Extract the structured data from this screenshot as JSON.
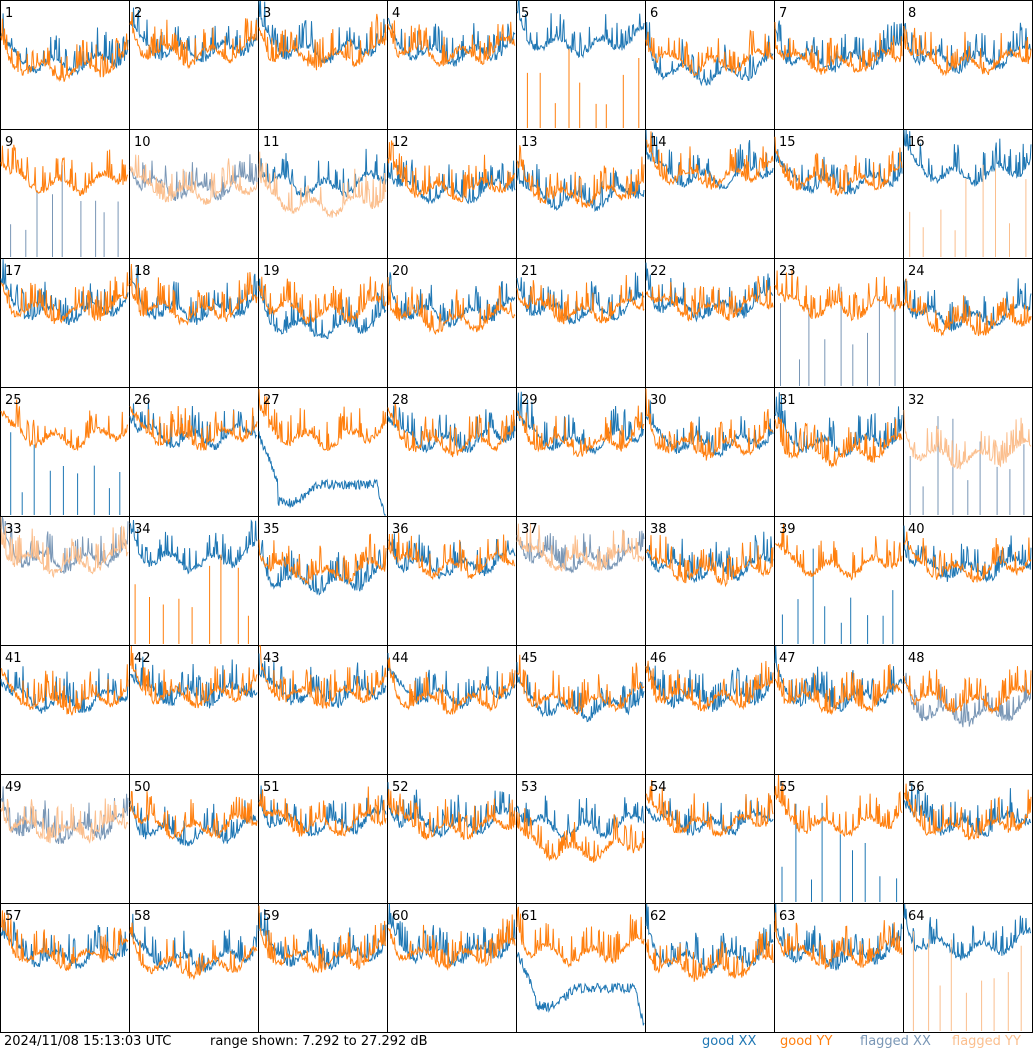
{
  "chart_data": {
    "type": "line",
    "layout": "8x8 small-multiples grid, one panel per tile",
    "y_range_db": [
      7.292,
      27.292
    ],
    "grid": false,
    "timestamp": "2024/11/08 15:13:03 UTC",
    "range_text": "range shown: 7.292 to 27.292 dB",
    "legend": [
      {
        "label": "good XX",
        "color": "#1f77b4"
      },
      {
        "label": "good YY",
        "color": "#ff7f0e"
      },
      {
        "label": "flagged XX",
        "color": "#7a97b6"
      },
      {
        "label": "flagged YY",
        "color": "#fbbf8e"
      }
    ],
    "tiles": [
      {
        "id": "1",
        "xx": "good",
        "yy": "good",
        "xx_pattern": "normal",
        "yy_pattern": "normal",
        "xx_level": 18.5,
        "yy_level": 17.5
      },
      {
        "id": "2",
        "xx": "good",
        "yy": "good",
        "xx_pattern": "normal",
        "yy_pattern": "normal",
        "xx_level": 20.5,
        "yy_level": 20
      },
      {
        "id": "3",
        "xx": "good",
        "yy": "good",
        "xx_pattern": "normal",
        "yy_pattern": "normal",
        "xx_level": 20.5,
        "yy_level": 19.5
      },
      {
        "id": "4",
        "xx": "good",
        "yy": "good",
        "xx_pattern": "normal",
        "yy_pattern": "normal",
        "xx_level": 20,
        "yy_level": 20
      },
      {
        "id": "5",
        "xx": "good",
        "yy": "good",
        "xx_pattern": "normal",
        "yy_pattern": "spikes",
        "xx_level": 21.5,
        "yy_level": 7.3
      },
      {
        "id": "6",
        "xx": "good",
        "yy": "good",
        "xx_pattern": "normal",
        "yy_pattern": "normal",
        "xx_level": 17,
        "yy_level": 18.5
      },
      {
        "id": "7",
        "xx": "good",
        "yy": "good",
        "xx_pattern": "normal",
        "yy_pattern": "normal",
        "xx_level": 19,
        "yy_level": 18.5
      },
      {
        "id": "8",
        "xx": "good",
        "yy": "good",
        "xx_pattern": "normal",
        "yy_pattern": "normal",
        "xx_level": 19,
        "yy_level": 18.5
      },
      {
        "id": "9",
        "xx": "flagged",
        "yy": "good",
        "xx_pattern": "spikes",
        "yy_pattern": "normal",
        "xx_level": 7.3,
        "yy_level": 20
      },
      {
        "id": "10",
        "xx": "flagged",
        "yy": "flagged",
        "xx_pattern": "normal",
        "yy_pattern": "normal",
        "xx_level": 19,
        "yy_level": 18.5
      },
      {
        "id": "11",
        "xx": "good",
        "yy": "flagged",
        "xx_pattern": "normal",
        "yy_pattern": "normal",
        "xx_level": 19.5,
        "yy_level": 16.5
      },
      {
        "id": "12",
        "xx": "good",
        "yy": "good",
        "xx_pattern": "normal",
        "yy_pattern": "normal",
        "xx_level": 18.5,
        "yy_level": 19
      },
      {
        "id": "13",
        "xx": "good",
        "yy": "good",
        "xx_pattern": "normal",
        "yy_pattern": "normal",
        "xx_level": 17.5,
        "yy_level": 18
      },
      {
        "id": "14",
        "xx": "good",
        "yy": "good",
        "xx_pattern": "normal",
        "yy_pattern": "normal",
        "xx_level": 21,
        "yy_level": 21
      },
      {
        "id": "15",
        "xx": "good",
        "yy": "good",
        "xx_pattern": "normal",
        "yy_pattern": "normal",
        "xx_level": 20,
        "yy_level": 20
      },
      {
        "id": "16",
        "xx": "good",
        "yy": "flagged",
        "xx_pattern": "normal",
        "yy_pattern": "spikes",
        "xx_level": 21.5,
        "yy_level": 7.3
      },
      {
        "id": "17",
        "xx": "good",
        "yy": "good",
        "xx_pattern": "normal",
        "yy_pattern": "normal",
        "xx_level": 20,
        "yy_level": 20
      },
      {
        "id": "18",
        "xx": "good",
        "yy": "good",
        "xx_pattern": "normal",
        "yy_pattern": "normal",
        "xx_level": 20,
        "yy_level": 20
      },
      {
        "id": "19",
        "xx": "good",
        "yy": "good",
        "xx_pattern": "normal",
        "yy_pattern": "normal",
        "xx_level": 17.5,
        "yy_level": 20
      },
      {
        "id": "20",
        "xx": "good",
        "yy": "good",
        "xx_pattern": "normal",
        "yy_pattern": "normal",
        "xx_level": 19.5,
        "yy_level": 18.5
      },
      {
        "id": "21",
        "xx": "good",
        "yy": "good",
        "xx_pattern": "normal",
        "yy_pattern": "normal",
        "xx_level": 20,
        "yy_level": 20
      },
      {
        "id": "22",
        "xx": "good",
        "yy": "good",
        "xx_pattern": "normal",
        "yy_pattern": "normal",
        "xx_level": 20.5,
        "yy_level": 20.5
      },
      {
        "id": "23",
        "xx": "flagged",
        "yy": "good",
        "xx_pattern": "spikes",
        "yy_pattern": "normal",
        "xx_level": 7.3,
        "yy_level": 20.5
      },
      {
        "id": "24",
        "xx": "good",
        "yy": "good",
        "xx_pattern": "normal",
        "yy_pattern": "normal",
        "xx_level": 19,
        "yy_level": 18
      },
      {
        "id": "25",
        "xx": "good",
        "yy": "good",
        "xx_pattern": "spikes",
        "yy_pattern": "normal",
        "xx_level": 7.3,
        "yy_level": 20.5
      },
      {
        "id": "26",
        "xx": "good",
        "yy": "good",
        "xx_pattern": "normal",
        "yy_pattern": "normal",
        "xx_level": 20.5,
        "yy_level": 20.5
      },
      {
        "id": "27",
        "xx": "good",
        "yy": "good",
        "xx_pattern": "dip",
        "yy_pattern": "normal",
        "xx_level": 12,
        "yy_level": 20.5
      },
      {
        "id": "28",
        "xx": "good",
        "yy": "good",
        "xx_pattern": "normal",
        "yy_pattern": "normal",
        "xx_level": 20,
        "yy_level": 19.5
      },
      {
        "id": "29",
        "xx": "good",
        "yy": "good",
        "xx_pattern": "normal",
        "yy_pattern": "normal",
        "xx_level": 20,
        "yy_level": 19.5
      },
      {
        "id": "30",
        "xx": "good",
        "yy": "good",
        "xx_pattern": "normal",
        "yy_pattern": "normal",
        "xx_level": 19.5,
        "yy_level": 19
      },
      {
        "id": "31",
        "xx": "good",
        "yy": "good",
        "xx_pattern": "normal",
        "yy_pattern": "normal",
        "xx_level": 19.5,
        "yy_level": 18
      },
      {
        "id": "32",
        "xx": "flagged",
        "yy": "flagged",
        "xx_pattern": "spikes",
        "yy_pattern": "normal",
        "xx_level": 7.3,
        "yy_level": 17.5
      },
      {
        "id": "33",
        "xx": "flagged",
        "yy": "flagged",
        "xx_pattern": "normal",
        "yy_pattern": "normal",
        "xx_level": 21.5,
        "yy_level": 21
      },
      {
        "id": "34",
        "xx": "good",
        "yy": "good",
        "xx_pattern": "normal",
        "yy_pattern": "spikes",
        "xx_level": 21.5,
        "yy_level": 7.3
      },
      {
        "id": "35",
        "xx": "good",
        "yy": "good",
        "xx_pattern": "normal",
        "yy_pattern": "normal",
        "xx_level": 18,
        "yy_level": 19.5
      },
      {
        "id": "36",
        "xx": "good",
        "yy": "good",
        "xx_pattern": "normal",
        "yy_pattern": "normal",
        "xx_level": 20.5,
        "yy_level": 20.5
      },
      {
        "id": "37",
        "xx": "flagged",
        "yy": "flagged",
        "xx_pattern": "normal",
        "yy_pattern": "normal",
        "xx_level": 21.5,
        "yy_level": 21.5
      },
      {
        "id": "38",
        "xx": "good",
        "yy": "good",
        "xx_pattern": "normal",
        "yy_pattern": "normal",
        "xx_level": 20,
        "yy_level": 19.5
      },
      {
        "id": "39",
        "xx": "good",
        "yy": "good",
        "xx_pattern": "spikes",
        "yy_pattern": "normal",
        "xx_level": 7.3,
        "yy_level": 20.5
      },
      {
        "id": "40",
        "xx": "good",
        "yy": "good",
        "xx_pattern": "normal",
        "yy_pattern": "normal",
        "xx_level": 20,
        "yy_level": 20
      },
      {
        "id": "41",
        "xx": "good",
        "yy": "good",
        "xx_pattern": "normal",
        "yy_pattern": "normal",
        "xx_level": 19.5,
        "yy_level": 19.5
      },
      {
        "id": "42",
        "xx": "good",
        "yy": "good",
        "xx_pattern": "normal",
        "yy_pattern": "normal",
        "xx_level": 20.5,
        "yy_level": 20.5
      },
      {
        "id": "43",
        "xx": "good",
        "yy": "good",
        "xx_pattern": "normal",
        "yy_pattern": "normal",
        "xx_level": 20.5,
        "yy_level": 20.5
      },
      {
        "id": "44",
        "xx": "good",
        "yy": "good",
        "xx_pattern": "normal",
        "yy_pattern": "normal",
        "xx_level": 20.5,
        "yy_level": 19.5
      },
      {
        "id": "45",
        "xx": "good",
        "yy": "good",
        "xx_pattern": "normal",
        "yy_pattern": "normal",
        "xx_level": 18.5,
        "yy_level": 19.5
      },
      {
        "id": "46",
        "xx": "good",
        "yy": "good",
        "xx_pattern": "normal",
        "yy_pattern": "normal",
        "xx_level": 20,
        "yy_level": 20
      },
      {
        "id": "47",
        "xx": "good",
        "yy": "good",
        "xx_pattern": "normal",
        "yy_pattern": "normal",
        "xx_level": 20,
        "yy_level": 19.5
      },
      {
        "id": "48",
        "xx": "flagged",
        "yy": "good",
        "xx_pattern": "normal",
        "yy_pattern": "normal",
        "xx_level": 17.5,
        "yy_level": 19.5
      },
      {
        "id": "49",
        "xx": "flagged",
        "yy": "flagged",
        "xx_pattern": "normal",
        "yy_pattern": "normal",
        "xx_level": 19.5,
        "yy_level": 19.5
      },
      {
        "id": "50",
        "xx": "good",
        "yy": "good",
        "xx_pattern": "normal",
        "yy_pattern": "normal",
        "xx_level": 19,
        "yy_level": 20
      },
      {
        "id": "51",
        "xx": "good",
        "yy": "good",
        "xx_pattern": "normal",
        "yy_pattern": "normal",
        "xx_level": 20.5,
        "yy_level": 20.5
      },
      {
        "id": "52",
        "xx": "good",
        "yy": "good",
        "xx_pattern": "normal",
        "yy_pattern": "normal",
        "xx_level": 20.5,
        "yy_level": 20
      },
      {
        "id": "53",
        "xx": "good",
        "yy": "good",
        "xx_pattern": "normal",
        "yy_pattern": "normal",
        "xx_level": 20,
        "yy_level": 16.5
      },
      {
        "id": "54",
        "xx": "good",
        "yy": "good",
        "xx_pattern": "normal",
        "yy_pattern": "normal",
        "xx_level": 20.5,
        "yy_level": 20.5
      },
      {
        "id": "55",
        "xx": "good",
        "yy": "good",
        "xx_pattern": "spikes",
        "yy_pattern": "normal",
        "xx_level": 7.3,
        "yy_level": 20.5
      },
      {
        "id": "56",
        "xx": "good",
        "yy": "good",
        "xx_pattern": "normal",
        "yy_pattern": "normal",
        "xx_level": 20.5,
        "yy_level": 20
      },
      {
        "id": "57",
        "xx": "good",
        "yy": "good",
        "xx_pattern": "normal",
        "yy_pattern": "normal",
        "xx_level": 20,
        "yy_level": 20
      },
      {
        "id": "58",
        "xx": "good",
        "yy": "good",
        "xx_pattern": "normal",
        "yy_pattern": "normal",
        "xx_level": 19.5,
        "yy_level": 18.5
      },
      {
        "id": "59",
        "xx": "good",
        "yy": "good",
        "xx_pattern": "normal",
        "yy_pattern": "normal",
        "xx_level": 20,
        "yy_level": 19.5
      },
      {
        "id": "60",
        "xx": "good",
        "yy": "good",
        "xx_pattern": "normal",
        "yy_pattern": "normal",
        "xx_level": 20.5,
        "yy_level": 20
      },
      {
        "id": "61",
        "xx": "good",
        "yy": "good",
        "xx_pattern": "dip",
        "yy_pattern": "normal",
        "xx_level": 14,
        "yy_level": 20.5
      },
      {
        "id": "62",
        "xx": "good",
        "yy": "good",
        "xx_pattern": "normal",
        "yy_pattern": "normal",
        "xx_level": 19.5,
        "yy_level": 18
      },
      {
        "id": "63",
        "xx": "good",
        "yy": "good",
        "xx_pattern": "normal",
        "yy_pattern": "normal",
        "xx_level": 20,
        "yy_level": 20
      },
      {
        "id": "64",
        "xx": "good",
        "yy": "flagged",
        "xx_pattern": "normal",
        "yy_pattern": "spikes",
        "xx_level": 21.5,
        "yy_level": 7.3
      }
    ]
  }
}
